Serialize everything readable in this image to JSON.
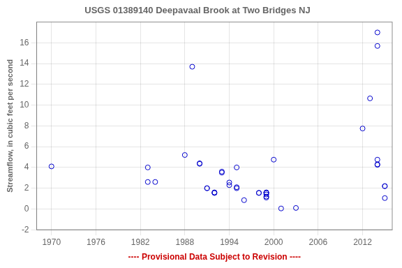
{
  "chart_data": {
    "type": "scatter",
    "title": "USGS 01389140 Deepavaal Brook at Two Bridges NJ",
    "xlabel": "---- Provisional Data Subject to Revision ----",
    "ylabel": "Streamflow, in cubic feet per second",
    "x": [
      1970,
      1983,
      1984,
      1983,
      1988,
      1989,
      1990,
      1990,
      1991,
      1991,
      1992,
      1992,
      1992,
      1993,
      1993,
      1994,
      1994,
      1995,
      1995,
      1995,
      1996,
      1998,
      1998,
      1999,
      1999,
      1999,
      1999,
      1999,
      1999,
      2000,
      2001,
      2003,
      2012,
      2013,
      2014,
      2014,
      2014,
      2014,
      2014,
      2015,
      2015,
      2015
    ],
    "values": [
      4.1,
      2.6,
      2.6,
      4.0,
      5.2,
      13.7,
      4.35,
      4.4,
      2.0,
      2.0,
      1.55,
      1.55,
      1.6,
      3.6,
      3.5,
      2.55,
      2.3,
      2.1,
      2.0,
      4.0,
      0.85,
      1.55,
      1.55,
      1.55,
      1.4,
      1.1,
      1.2,
      1.55,
      1.6,
      4.75,
      0.05,
      0.1,
      7.75,
      10.65,
      15.7,
      17.0,
      4.25,
      4.75,
      4.3,
      2.2,
      2.2,
      1.05
    ],
    "color": "#0000CC",
    "marker": "circle",
    "xlim": [
      1968,
      2016
    ],
    "ylim": [
      -2,
      18
    ],
    "xticks": [
      1970,
      1976,
      1982,
      1988,
      1994,
      2000,
      2006,
      2012
    ],
    "yticks": [
      -2,
      0,
      2,
      4,
      6,
      8,
      10,
      12,
      14,
      16
    ],
    "grid": true
  }
}
